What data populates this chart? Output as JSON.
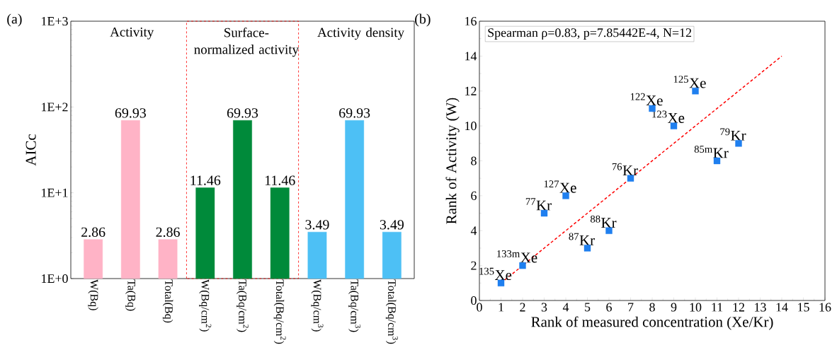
{
  "chart_data": [
    {
      "type": "bar",
      "title": "(a)",
      "ylabel": "AICc",
      "categories": [
        "W(Bq)",
        "Ta(Bq)",
        "Total(Bq)",
        "W(Bq/cm$^{2}$)",
        "Ta(Bq/cm$^{2}$)",
        "Total(Bq/cm$^{2}$)",
        "W(Bq/cm$^{3}$)",
        "Ta(Bq/cm$^{3}$)",
        "Total(Bq/cm$^{3}$)"
      ],
      "values": [
        2.86,
        69.93,
        2.86,
        11.46,
        69.93,
        11.46,
        3.49,
        69.93,
        3.49
      ],
      "colors": [
        "#ffb3c6",
        "#ffb3c6",
        "#ffb3c6",
        "#008a3a",
        "#008a3a",
        "#008a3a",
        "#4dc0f5",
        "#4dc0f5",
        "#4dc0f5"
      ],
      "log": true,
      "ylim": [
        1,
        1000
      ],
      "yticks": [
        {
          "value": 1,
          "label": "1E+0"
        },
        {
          "value": 10,
          "label": "1E+1"
        },
        {
          "value": 100,
          "label": "1E+2"
        },
        {
          "value": 1000,
          "label": "1E+3"
        }
      ],
      "data_labels": true,
      "annotations": [
        "Activity",
        "Surface-normalized activity",
        "Activity density"
      ]
    },
    {
      "type": "scatter",
      "title": "(b)",
      "xlabel": "Rank of measured concentration (Xe/Kr)",
      "ylabel": "Rank of Activity (W)",
      "series": [
        {
          "type": "scatter",
          "color": "#1f7fef",
          "marker": "square",
          "x": [
            1,
            2,
            3,
            4,
            5,
            6,
            7,
            8,
            9,
            10,
            11,
            12
          ],
          "values": [
            1,
            2,
            5,
            6,
            3,
            4,
            7,
            11,
            10,
            12,
            8,
            9
          ]
        },
        {
          "type": "line",
          "color": "#ff0000",
          "line_style": "dashed",
          "marker": "none",
          "x": [
            1,
            14
          ],
          "values": [
            1,
            14
          ]
        }
      ],
      "xlim": [
        0,
        16
      ],
      "ylim": [
        0,
        16
      ],
      "xticks": [
        0,
        1,
        2,
        3,
        4,
        5,
        6,
        7,
        8,
        9,
        10,
        11,
        12,
        13,
        14,
        15,
        16
      ],
      "yticks": [
        0,
        2,
        4,
        6,
        8,
        10,
        12,
        14,
        16
      ],
      "annotations": [
        "Spearman ρ=0.83, p=7.85442E-4, N=12",
        {
          "text": "$^{135}$Xe",
          "x": 1,
          "y": 1
        },
        {
          "text": "$^{133m}$Xe",
          "x": 2,
          "y": 2
        },
        {
          "text": "$^{77}$Kr",
          "x": 3,
          "y": 5
        },
        {
          "text": "$^{127}$Xe",
          "x": 4,
          "y": 6
        },
        {
          "text": "$^{87}$Kr",
          "x": 5,
          "y": 3
        },
        {
          "text": "$^{88}$Kr",
          "x": 6,
          "y": 4
        },
        {
          "text": "$^{76}$Kr",
          "x": 7,
          "y": 7
        },
        {
          "text": "$^{122}$Xe",
          "x": 8,
          "y": 11
        },
        {
          "text": "$^{123}$Xe",
          "x": 9,
          "y": 10
        },
        {
          "text": "$^{125}$Xe",
          "x": 10,
          "y": 12
        },
        {
          "text": "$^{85m}$Kr",
          "x": 11,
          "y": 8
        },
        {
          "text": "$^{79}$Kr",
          "x": 12,
          "y": 9
        }
      ]
    }
  ]
}
